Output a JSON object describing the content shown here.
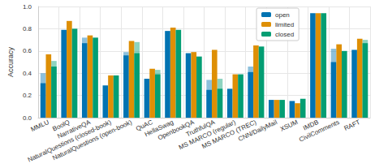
{
  "chart_data": {
    "type": "bar",
    "y_label": "Accuracy",
    "categories": [
      "MMLU",
      "BoolQ",
      "NarrativeQA",
      "NaturalQuestions (closed-book)",
      "NaturalQuestions (open-book)",
      "QuAC",
      "HellaSwag",
      "OpenbookQA",
      "TruthfulQA",
      "MS MARCO (regular)",
      "MS MARCO (TREC)",
      "CNN/DailyMail",
      "XSUM",
      "IMDB",
      "CivilComments",
      "RAFT"
    ],
    "series": [
      {
        "name": "open",
        "color": "#0173b2",
        "values": [
          0.31,
          0.79,
          0.67,
          0.29,
          0.56,
          0.35,
          0.78,
          0.58,
          0.25,
          0.26,
          0.41,
          0.16,
          0.15,
          0.94,
          0.5,
          0.61
        ],
        "secondary_values": [
          0.4,
          null,
          0.72,
          null,
          0.59,
          null,
          null,
          null,
          0.34,
          null,
          0.46,
          null,
          null,
          null,
          0.62,
          null
        ]
      },
      {
        "name": "limited",
        "color": "#de8f05",
        "values": [
          0.57,
          0.87,
          0.74,
          0.38,
          0.69,
          0.44,
          0.81,
          0.59,
          0.61,
          0.39,
          0.65,
          0.16,
          0.13,
          0.94,
          0.66,
          0.71
        ]
      },
      {
        "name": "closed",
        "color": "#029e73",
        "values": [
          0.46,
          0.8,
          0.72,
          0.38,
          0.58,
          0.39,
          0.79,
          0.55,
          0.26,
          0.39,
          0.64,
          0.16,
          0.17,
          0.94,
          0.6,
          0.67
        ],
        "secondary_values": [
          0.51,
          null,
          null,
          null,
          0.68,
          0.43,
          null,
          null,
          0.35,
          null,
          null,
          null,
          null,
          null,
          null,
          0.7
        ]
      }
    ],
    "ylim": [
      0,
      1
    ],
    "yticks": [
      {
        "value": 0,
        "label": "0.0"
      },
      {
        "value": 0.2,
        "label": "0.2"
      },
      {
        "value": 0.4,
        "label": "0.4"
      },
      {
        "value": 0.6,
        "label": "0.6"
      },
      {
        "value": 0.8,
        "label": "0.8"
      },
      {
        "value": 1,
        "label": "1.0"
      }
    ],
    "grid": true,
    "legend": "upper right"
  }
}
